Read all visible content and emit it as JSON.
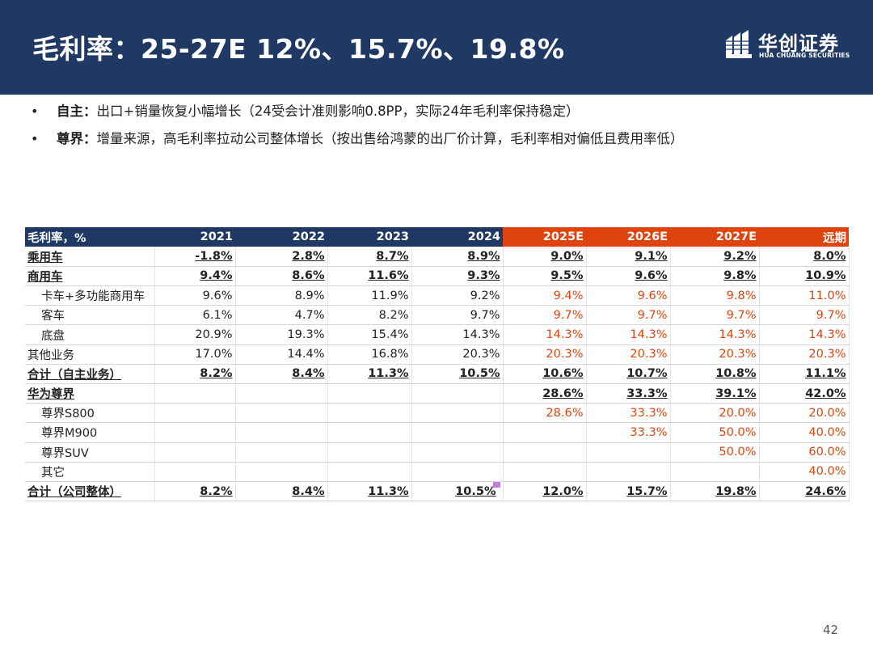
{
  "header": {
    "title": "毛利率：25-27E 12%、15.7%、19.8%",
    "logo_cn": "华创证券",
    "logo_en": "HUA CHUANG SECURITIES"
  },
  "bullets": [
    {
      "bold": "自主：",
      "text": "出口+销量恢复小幅增长（24受会计准则影响0.8PP，实际24年毛利率保持稳定）"
    },
    {
      "bold": "尊界：",
      "text": "增量来源，高毛利率拉动公司整体增长（按出售给鸿蒙的出厂价计算，毛利率相对偏低且费用率低）"
    }
  ],
  "table": {
    "headers": [
      "毛利率，%",
      "2021",
      "2022",
      "2023",
      "2024",
      "2025E",
      "2026E",
      "2027E",
      "远期"
    ],
    "rows": [
      {
        "label": "乘用车",
        "values": [
          "-1.8%",
          "2.8%",
          "8.7%",
          "8.9%",
          "9.0%",
          "9.1%",
          "9.2%",
          "8.0%"
        ]
      },
      {
        "label": "商用车",
        "values": [
          "9.4%",
          "8.6%",
          "11.6%",
          "9.3%",
          "9.5%",
          "9.6%",
          "9.8%",
          "10.9%"
        ]
      },
      {
        "label": "卡车+多功能商用车",
        "values": [
          "9.6%",
          "8.9%",
          "11.9%",
          "9.2%",
          "9.4%",
          "9.6%",
          "9.8%",
          "11.0%"
        ]
      },
      {
        "label": "客车",
        "values": [
          "6.1%",
          "4.7%",
          "8.2%",
          "9.7%",
          "9.7%",
          "9.7%",
          "9.7%",
          "9.7%"
        ]
      },
      {
        "label": "底盘",
        "values": [
          "20.9%",
          "19.3%",
          "15.4%",
          "14.3%",
          "14.3%",
          "14.3%",
          "14.3%",
          "14.3%"
        ]
      },
      {
        "label": "其他业务",
        "values": [
          "17.0%",
          "14.4%",
          "16.8%",
          "20.3%",
          "20.3%",
          "20.3%",
          "20.3%",
          "20.3%"
        ]
      },
      {
        "label": "合计（自主业务）",
        "values": [
          "8.2%",
          "8.4%",
          "11.3%",
          "10.5%",
          "10.6%",
          "10.7%",
          "10.8%",
          "11.1%"
        ]
      },
      {
        "label": "华为尊界",
        "values": [
          "",
          "",
          "",
          "",
          "28.6%",
          "33.3%",
          "39.1%",
          "42.0%"
        ]
      },
      {
        "label": "尊界S800",
        "values": [
          "",
          "",
          "",
          "",
          "28.6%",
          "33.3%",
          "20.0%",
          "20.0%"
        ]
      },
      {
        "label": "尊界M900",
        "values": [
          "",
          "",
          "",
          "",
          "",
          "33.3%",
          "50.0%",
          "40.0%"
        ]
      },
      {
        "label": "尊界SUV",
        "values": [
          "",
          "",
          "",
          "",
          "",
          "",
          "50.0%",
          "60.0%"
        ]
      },
      {
        "label": "其它",
        "values": [
          "",
          "",
          "",
          "",
          "",
          "",
          "",
          "40.0%"
        ]
      },
      {
        "label": "合计（公司整体）",
        "values": [
          "8.2%",
          "8.4%",
          "11.3%",
          "10.5%",
          "12.0%",
          "15.7%",
          "19.8%",
          "24.6%"
        ]
      }
    ]
  },
  "page_number": "42",
  "colors": {
    "navy": "#1f3864",
    "accent_orange": "#e0440e"
  }
}
